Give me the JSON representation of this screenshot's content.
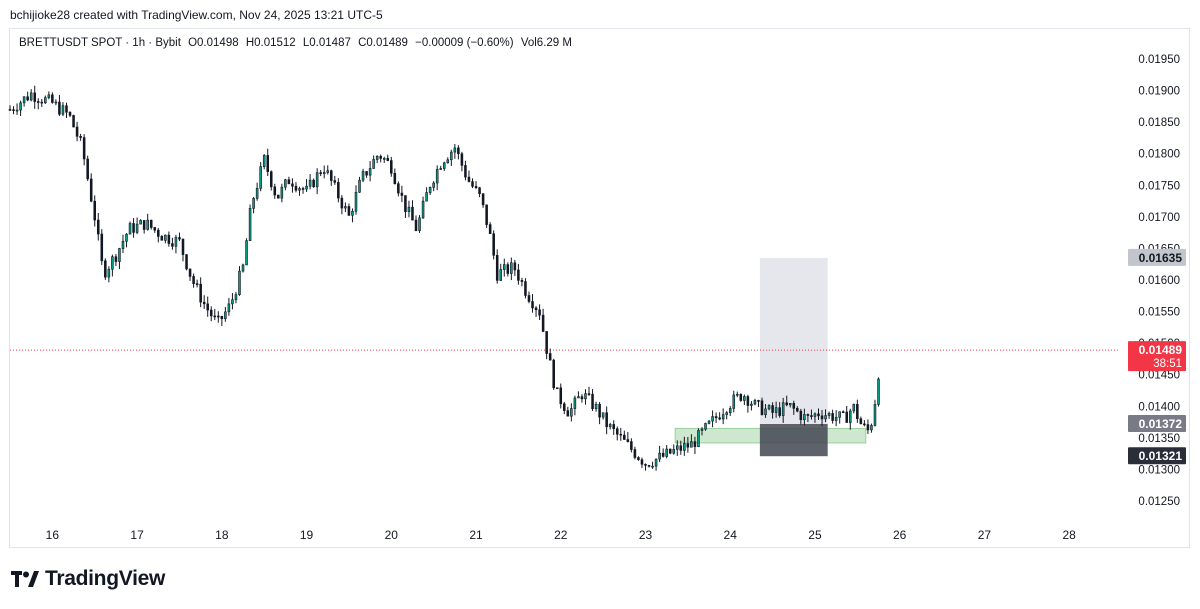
{
  "header": {
    "created_by": "bchijioke28 created with TradingView.com, Nov 24, 2025 13:21 UTC-5"
  },
  "legend": {
    "symbol": "BRETTUSDT SPOT · 1h · Bybit",
    "open": "O0.01498",
    "high": "H0.01512",
    "low": "L0.01487",
    "close": "C0.01489",
    "change": "−0.00009 (−0.60%)",
    "volume": "Vol6.29 M"
  },
  "footer": {
    "brand": "TradingView"
  },
  "colors": {
    "up": "#089981",
    "down": "#f23645",
    "candle": "#131722",
    "price_line": "#f23645",
    "target_box": "#d1d4dc",
    "stop_box": "#434651",
    "zone": "#a5d6a7"
  },
  "chart_data": {
    "type": "candlestick",
    "symbol": "BRETTUSDT",
    "timeframe": "1h",
    "y_axis_ticks": [
      "0.01950",
      "0.01900",
      "0.01850",
      "0.01800",
      "0.01750",
      "0.01700",
      "0.01650",
      "0.01600",
      "0.01550",
      "0.01500",
      "0.01450",
      "0.01400",
      "0.01350",
      "0.01300",
      "0.01250"
    ],
    "ylim": [
      0.0122,
      0.0198
    ],
    "x_axis_ticks": [
      "16",
      "17",
      "18",
      "19",
      "20",
      "21",
      "22",
      "23",
      "24",
      "25",
      "26",
      "27",
      "28"
    ],
    "xlim_days": [
      15.5,
      28.6
    ],
    "price_labels": [
      {
        "text": "0.01635",
        "value": 0.01635,
        "style": "target"
      },
      {
        "text": "0.01489",
        "sub": "38:51",
        "value": 0.01489,
        "style": "last"
      },
      {
        "text": "0.01372",
        "value": 0.01372,
        "style": "entry"
      },
      {
        "text": "0.01321",
        "value": 0.01321,
        "style": "stop"
      }
    ],
    "last_price": 0.01489,
    "position_tool": {
      "start_day": 24.35,
      "end_day": 25.15,
      "entry": 0.01372,
      "target": 0.01635,
      "stop": 0.01321
    },
    "support_zone": {
      "start_day": 23.35,
      "end_day": 25.6,
      "top": 0.01365,
      "bottom": 0.01342
    },
    "price_path": [
      [
        15.5,
        0.0187
      ],
      [
        15.75,
        0.01895
      ],
      [
        16.0,
        0.0188
      ],
      [
        16.2,
        0.0186
      ],
      [
        16.35,
        0.0181
      ],
      [
        16.5,
        0.017
      ],
      [
        16.6,
        0.0161
      ],
      [
        16.75,
        0.0164
      ],
      [
        16.9,
        0.0168
      ],
      [
        17.1,
        0.0169
      ],
      [
        17.3,
        0.0167
      ],
      [
        17.5,
        0.0166
      ],
      [
        17.65,
        0.016
      ],
      [
        17.8,
        0.0156
      ],
      [
        17.95,
        0.0153
      ],
      [
        18.1,
        0.0156
      ],
      [
        18.25,
        0.0162
      ],
      [
        18.35,
        0.0172
      ],
      [
        18.5,
        0.0179
      ],
      [
        18.65,
        0.0173
      ],
      [
        18.8,
        0.0176
      ],
      [
        19.0,
        0.0174
      ],
      [
        19.2,
        0.0178
      ],
      [
        19.35,
        0.0174
      ],
      [
        19.5,
        0.017
      ],
      [
        19.65,
        0.0176
      ],
      [
        19.85,
        0.018
      ],
      [
        20.0,
        0.0178
      ],
      [
        20.15,
        0.0172
      ],
      [
        20.3,
        0.0168
      ],
      [
        20.45,
        0.0175
      ],
      [
        20.6,
        0.0179
      ],
      [
        20.75,
        0.0181
      ],
      [
        20.9,
        0.0176
      ],
      [
        21.05,
        0.0173
      ],
      [
        21.15,
        0.0168
      ],
      [
        21.25,
        0.0161
      ],
      [
        21.45,
        0.0162
      ],
      [
        21.6,
        0.0158
      ],
      [
        21.75,
        0.0155
      ],
      [
        21.85,
        0.0148
      ],
      [
        21.95,
        0.0142
      ],
      [
        22.1,
        0.0139
      ],
      [
        22.25,
        0.0142
      ],
      [
        22.4,
        0.014
      ],
      [
        22.55,
        0.0137
      ],
      [
        22.7,
        0.0135
      ],
      [
        22.85,
        0.0133
      ],
      [
        23.0,
        0.0131
      ],
      [
        23.2,
        0.0132
      ],
      [
        23.35,
        0.0133
      ],
      [
        23.55,
        0.0134
      ],
      [
        23.75,
        0.0137
      ],
      [
        23.95,
        0.014
      ],
      [
        24.15,
        0.0142
      ],
      [
        24.3,
        0.014
      ],
      [
        24.5,
        0.0139
      ],
      [
        24.7,
        0.014
      ],
      [
        24.9,
        0.0138
      ],
      [
        25.05,
        0.0139
      ],
      [
        25.2,
        0.01385
      ],
      [
        25.35,
        0.0138
      ],
      [
        25.45,
        0.014
      ],
      [
        25.55,
        0.0137
      ],
      [
        25.62,
        0.0136
      ],
      [
        25.68,
        0.0138
      ],
      [
        25.73,
        0.0143
      ],
      [
        25.78,
        0.01489
      ]
    ]
  }
}
